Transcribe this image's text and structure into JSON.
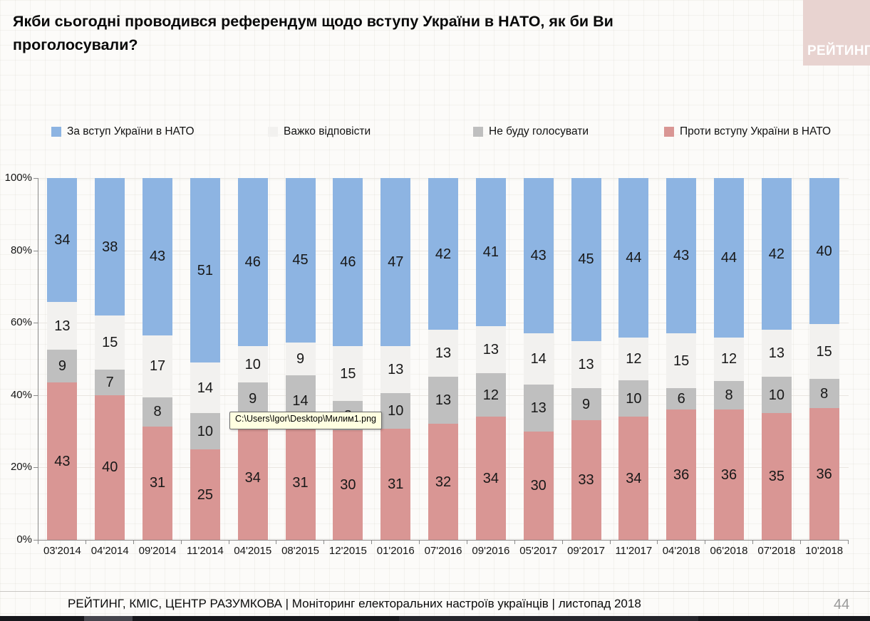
{
  "slide": {
    "title": "Якби сьогодні проводився референдум щодо вступу України в НАТО, як би Ви проголосували?",
    "logo_text": "РЕЙТИНГ",
    "footer": "РЕЙТИНГ, КМІС, ЦЕНТР РАЗУМКОВА |  Моніторинг електоральних настроїв українців | листопад 2018",
    "page_number": "44"
  },
  "tooltip": {
    "text": "C:\\Users\\Igor\\Desktop\\Милим1.png"
  },
  "chart_data": {
    "type": "bar",
    "subtype": "stacked-100-percent-column",
    "title": "Якби сьогодні проводився референдум щодо вступу України в НАТО, як би Ви проголосували?",
    "xlabel": "",
    "ylabel": "",
    "ylim": [
      0,
      100
    ],
    "y_ticks": [
      "0%",
      "20%",
      "40%",
      "60%",
      "80%",
      "100%"
    ],
    "grid": true,
    "legend_position": "top",
    "categories": [
      "03'2014",
      "04'2014",
      "09'2014",
      "11'2014",
      "04'2015",
      "08'2015",
      "12'2015",
      "01'2016",
      "07'2016",
      "09'2016",
      "05'2017",
      "09'2017",
      "11'2017",
      "04'2018",
      "06'2018",
      "07'2018",
      "10'2018"
    ],
    "series": [
      {
        "name": "Проти вступу України в НАТО",
        "color": "#D99694",
        "stack_order": "bottom",
        "values": [
          43,
          40,
          31,
          25,
          34,
          31,
          30,
          31,
          32,
          34,
          30,
          33,
          34,
          36,
          36,
          35,
          36
        ]
      },
      {
        "name": "Не буду голосувати",
        "color": "#BFBFBF",
        "stack_order": "second",
        "values": [
          9,
          7,
          8,
          10,
          9,
          14,
          8,
          10,
          13,
          12,
          13,
          9,
          10,
          6,
          8,
          10,
          8
        ]
      },
      {
        "name": "Важко відповісти",
        "color": "#F2F1EF",
        "stack_order": "third",
        "values": [
          13,
          15,
          17,
          14,
          10,
          9,
          15,
          13,
          13,
          13,
          14,
          13,
          12,
          15,
          12,
          13,
          15
        ]
      },
      {
        "name": "За вступ України в НАТО",
        "color": "#8DB4E2",
        "stack_order": "top",
        "values": [
          34,
          38,
          43,
          51,
          46,
          45,
          46,
          47,
          42,
          41,
          43,
          45,
          44,
          43,
          44,
          42,
          40
        ]
      }
    ],
    "legend": [
      {
        "label": "За вступ України в НАТО",
        "color": "#8DB4E2"
      },
      {
        "label": "Важко відповісти",
        "color": "#F2F1EF"
      },
      {
        "label": "Не буду голосувати",
        "color": "#BFBFBF"
      },
      {
        "label": "Проти вступу України в НАТО",
        "color": "#D99694"
      }
    ]
  }
}
